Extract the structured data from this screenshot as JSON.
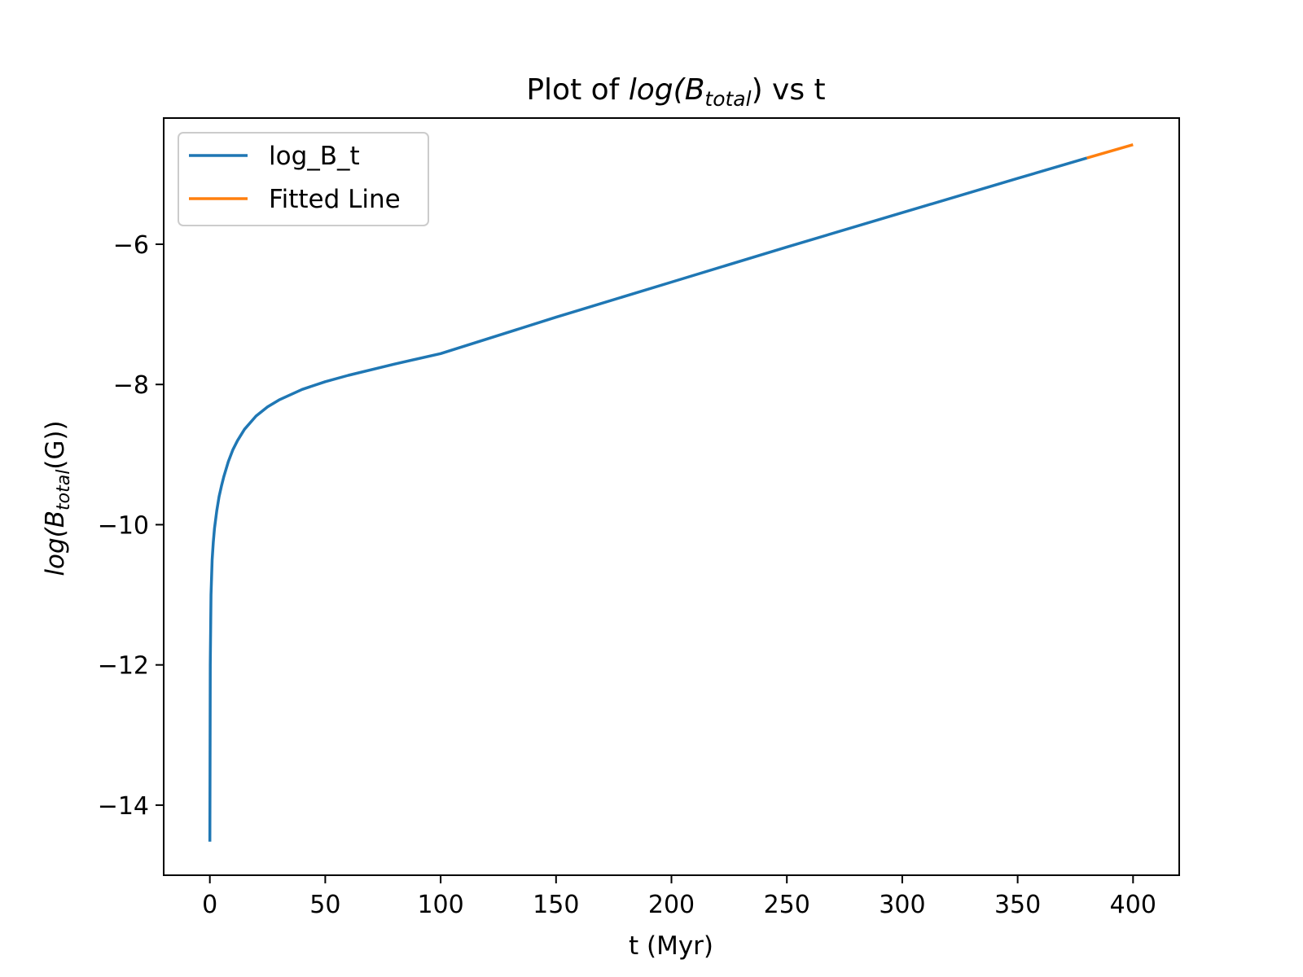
{
  "chart_data": {
    "type": "line",
    "title": {
      "prefix": "Plot of ",
      "math_open": "log(B",
      "math_sub": "total",
      "math_close": ")",
      "suffix": " vs t"
    },
    "xlabel": "t (Myr)",
    "ylabel": {
      "math_open": "log(B",
      "math_sub": "total",
      "math_close": "(G))"
    },
    "xlim": [
      -20,
      420
    ],
    "ylim": [
      -15.0,
      -4.2
    ],
    "xticks": [
      0,
      50,
      100,
      150,
      200,
      250,
      300,
      350,
      400
    ],
    "xtick_labels": [
      "0",
      "50",
      "100",
      "150",
      "200",
      "250",
      "300",
      "350",
      "400"
    ],
    "yticks": [
      -6,
      -8,
      -10,
      -12,
      -14
    ],
    "ytick_labels": [
      "−6",
      "−8",
      "−10",
      "−12",
      "−14"
    ],
    "grid": false,
    "legend_position": "upper left",
    "series": [
      {
        "name": "log_B_t",
        "color": "#1f77b4",
        "x": [
          0,
          0.2,
          0.5,
          1,
          1.5,
          2,
          3,
          4,
          5,
          6,
          8,
          10,
          12,
          15,
          20,
          25,
          30,
          40,
          50,
          60,
          80,
          100,
          150,
          200,
          250,
          300,
          350,
          380
        ],
        "y": [
          -14.52,
          -12.0,
          -11.0,
          -10.5,
          -10.25,
          -10.05,
          -9.8,
          -9.6,
          -9.45,
          -9.32,
          -9.1,
          -8.93,
          -8.8,
          -8.64,
          -8.45,
          -8.32,
          -8.22,
          -8.07,
          -7.96,
          -7.87,
          -7.71,
          -7.56,
          -7.04,
          -6.54,
          -6.04,
          -5.55,
          -5.06,
          -4.77
        ]
      },
      {
        "name": "Fitted Line",
        "color": "#ff7f0e",
        "x": [
          380,
          400
        ],
        "y": [
          -4.77,
          -4.58
        ]
      }
    ]
  }
}
